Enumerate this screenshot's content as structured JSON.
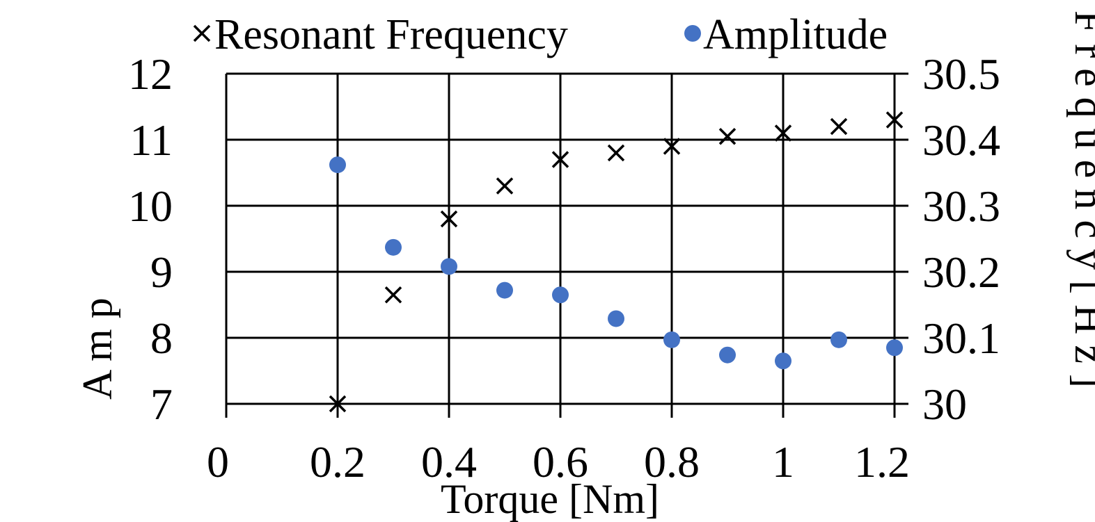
{
  "chart_data": {
    "type": "scatter",
    "xlabel": "Torque [Nm]",
    "ylabel": "A m p",
    "y2label": "F r e q u e n c y [ H z ]",
    "xlim": [
      0,
      1.2
    ],
    "ylim": [
      7,
      12
    ],
    "y2lim": [
      30,
      30.5
    ],
    "x_ticks": [
      "0",
      "0.2",
      "0.4",
      "0.6",
      "0.8",
      "1",
      "1.2"
    ],
    "y_ticks": [
      "7",
      "8",
      "9",
      "10",
      "11",
      "12"
    ],
    "y2_ticks": [
      "30",
      "30.1",
      "30.2",
      "30.3",
      "30.4",
      "30.5"
    ],
    "grid": true,
    "legend_position": "top",
    "series": [
      {
        "name": "Resonant Frequency",
        "axis": "right",
        "marker": "x",
        "color": "#000000",
        "x": [
          0.2,
          0.3,
          0.4,
          0.5,
          0.6,
          0.7,
          0.8,
          0.9,
          1.0,
          1.1,
          1.2
        ],
        "values": [
          30.0,
          30.165,
          30.28,
          30.33,
          30.37,
          30.38,
          30.39,
          30.405,
          30.41,
          30.42,
          30.43
        ]
      },
      {
        "name": "Amplitude",
        "axis": "left",
        "marker": "circle",
        "color": "#4472C4",
        "x": [
          0.2,
          0.3,
          0.4,
          0.5,
          0.6,
          0.7,
          0.8,
          0.9,
          1.0,
          1.1,
          1.2
        ],
        "values": [
          10.62,
          9.37,
          9.08,
          8.72,
          8.65,
          8.29,
          7.97,
          7.74,
          7.65,
          7.97,
          7.85
        ]
      }
    ]
  }
}
